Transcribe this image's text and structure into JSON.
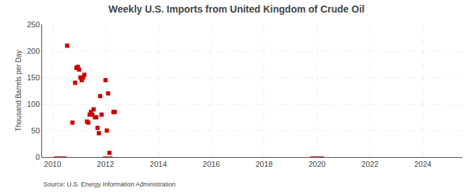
{
  "chart_data": {
    "type": "scatter",
    "title": "Weekly U.S. Imports from United Kingdom of Crude Oil",
    "ylabel": "Thousand Barrels per Day",
    "source": "Source: U.S. Energy Information Administration",
    "series": [
      {
        "type": "scatter",
        "color": "#cc0000",
        "marker": "square",
        "x": [
          2010.55,
          2010.75,
          2010.85,
          2010.9,
          2010.95,
          2011.0,
          2011.05,
          2011.1,
          2011.15,
          2011.2,
          2011.3,
          2011.35,
          2011.4,
          2011.45,
          2011.5,
          2011.55,
          2011.6,
          2011.65,
          2011.7,
          2011.75,
          2011.8,
          2011.85,
          2012.0,
          2012.05,
          2012.1,
          2012.15,
          2012.3,
          2012.35
        ],
        "values": [
          210,
          65,
          140,
          168,
          170,
          165,
          150,
          145,
          150,
          155,
          67,
          65,
          80,
          85,
          80,
          90,
          75,
          75,
          55,
          45,
          115,
          80,
          145,
          50,
          120,
          8,
          85,
          85
        ]
      },
      {
        "type": "line",
        "color": "#cc0000",
        "x": [
          2010.05,
          2010.52
        ],
        "values": [
          0,
          0
        ]
      },
      {
        "type": "line",
        "color": "#cc0000",
        "x": [
          2011.9,
          2012.27
        ],
        "values": [
          0,
          0
        ]
      },
      {
        "type": "line",
        "color": "#cc0000",
        "x": [
          2019.75,
          2020.25
        ],
        "values": [
          0,
          0
        ]
      }
    ],
    "xlim": [
      2009.6,
      2025.5
    ],
    "xticks": [
      2010,
      2012,
      2014,
      2016,
      2018,
      2020,
      2022,
      2024
    ],
    "ylim": [
      0,
      250
    ],
    "yticks": [
      0,
      50,
      100,
      150,
      200,
      250
    ],
    "grid": true
  }
}
